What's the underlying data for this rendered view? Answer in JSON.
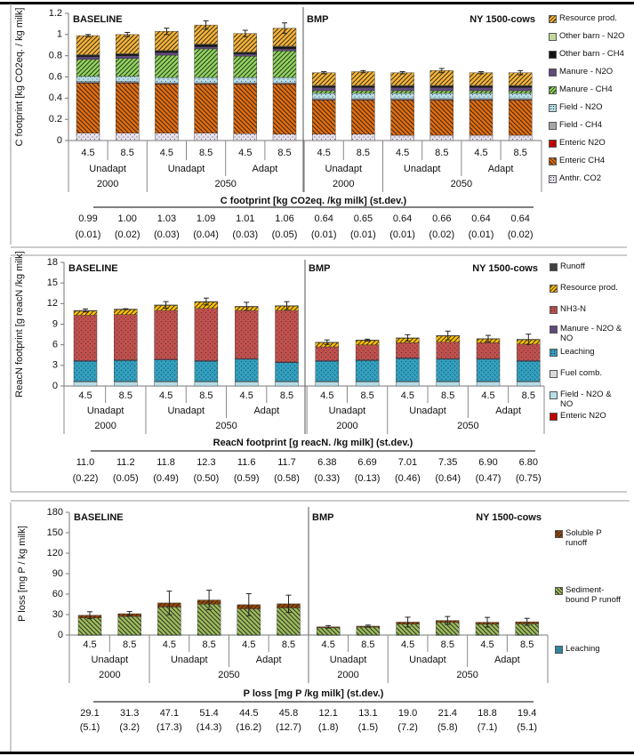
{
  "chart_data": [
    {
      "type": "bar",
      "stacked": true,
      "label_left": "BASELINE",
      "label_mid": "BMP",
      "label_right": "NY 1500-cows",
      "ylabel": "C footprint [kg CO2eq. / kg milk]",
      "ylim": [
        0,
        1.2
      ],
      "yticks": [
        "0",
        "0.2",
        "0.4",
        "0.6",
        "0.8",
        "1",
        "1.2"
      ],
      "rcp": [
        "4.5",
        "8.5",
        "4.5",
        "8.5",
        "4.5",
        "8.5",
        "4.5",
        "8.5",
        "4.5",
        "8.5",
        "4.5",
        "8.5"
      ],
      "scenarios": [
        "Unadapt",
        "Unadapt",
        "Adapt",
        "Unadapt",
        "Unadapt",
        "Adapt"
      ],
      "years": [
        "2000",
        "2050",
        "2000",
        "2050"
      ],
      "table_title": "C footprint [kg CO2eq. /kg milk]  (st.dev.)",
      "totals": [
        "0.99",
        "1.00",
        "1.03",
        "1.09",
        "1.01",
        "1.06",
        "0.64",
        "0.65",
        "0.64",
        "0.66",
        "0.64",
        "0.64"
      ],
      "stdev": [
        "(0.01)",
        "(0.02)",
        "(0.03)",
        "(0.04)",
        "(0.03)",
        "(0.05)",
        "(0.01)",
        "(0.01)",
        "(0.01)",
        "(0.02)",
        "(0.01)",
        "(0.02)"
      ],
      "series": [
        {
          "name": "Anthr. CO2",
          "color": "#e6e0ec",
          "pattern": "dots",
          "values": [
            0.07,
            0.07,
            0.07,
            0.07,
            0.065,
            0.06,
            0.06,
            0.06,
            0.05,
            0.05,
            0.05,
            0.05
          ]
        },
        {
          "name": "Enteric CH4",
          "color": "#e46c0a",
          "pattern": "hatch-down",
          "values": [
            0.47,
            0.47,
            0.46,
            0.46,
            0.465,
            0.47,
            0.32,
            0.32,
            0.33,
            0.33,
            0.33,
            0.33
          ]
        },
        {
          "name": "Enteric N2O",
          "color": "#c00000",
          "pattern": "solid",
          "values": [
            0.005,
            0.005,
            0.005,
            0.005,
            0.005,
            0.005,
            0.005,
            0.005,
            0.005,
            0.005,
            0.005,
            0.005
          ]
        },
        {
          "name": "Field - CH4",
          "color": "#a6a6a6",
          "pattern": "solid",
          "values": [
            0.01,
            0.01,
            0.01,
            0.01,
            0.01,
            0.01,
            0.01,
            0.01,
            0.01,
            0.01,
            0.01,
            0.01
          ]
        },
        {
          "name": "Field - N2O",
          "color": "#b7dee8",
          "pattern": "dots",
          "values": [
            0.05,
            0.05,
            0.05,
            0.05,
            0.05,
            0.05,
            0.05,
            0.05,
            0.05,
            0.05,
            0.05,
            0.05
          ]
        },
        {
          "name": "Manure - CH4",
          "color": "#8fd45b",
          "pattern": "hatch-up",
          "values": [
            0.16,
            0.17,
            0.21,
            0.27,
            0.2,
            0.25,
            0.025,
            0.025,
            0.025,
            0.025,
            0.025,
            0.025
          ]
        },
        {
          "name": "Manure - N2O",
          "color": "#604a7b",
          "pattern": "solid",
          "values": [
            0.025,
            0.025,
            0.025,
            0.02,
            0.02,
            0.02,
            0.03,
            0.03,
            0.03,
            0.03,
            0.03,
            0.03
          ]
        },
        {
          "name": "Other barn - CH4",
          "color": "#111111",
          "pattern": "solid",
          "values": [
            0.015,
            0.015,
            0.015,
            0.02,
            0.015,
            0.02,
            0.015,
            0.015,
            0.015,
            0.015,
            0.015,
            0.015
          ]
        },
        {
          "name": "Other barn - N2O",
          "color": "#c4d79b",
          "pattern": "solid",
          "values": [
            0.005,
            0.005,
            0.005,
            0.005,
            0.005,
            0.005,
            0.005,
            0.005,
            0.005,
            0.005,
            0.005,
            0.005
          ]
        },
        {
          "name": "Resource prod.",
          "color": "#f5b335",
          "pattern": "hatch-up",
          "values": [
            0.18,
            0.18,
            0.18,
            0.18,
            0.175,
            0.17,
            0.12,
            0.13,
            0.12,
            0.14,
            0.12,
            0.12
          ]
        }
      ]
    },
    {
      "type": "bar",
      "stacked": true,
      "label_left": "BASELINE",
      "label_mid": "BMP",
      "label_right": "NY 1500-cows",
      "ylabel": "ReacN footprint [g reacN /kg milk]",
      "ylim": [
        0,
        18
      ],
      "yticks": [
        "0",
        "3",
        "6",
        "9",
        "12",
        "15",
        "18"
      ],
      "rcp": [
        "4.5",
        "8.5",
        "4.5",
        "8.5",
        "4.5",
        "8.5",
        "4.5",
        "8.5",
        "4.5",
        "8.5",
        "4.5",
        "8.5"
      ],
      "scenarios": [
        "Unadapt",
        "Unadapt",
        "Adapt",
        "Unadapt",
        "Unadapt",
        "Adapt"
      ],
      "years": [
        "2000",
        "2050",
        "2000",
        "2050"
      ],
      "table_title": "ReacN footprint [g reacN. /kg milk]  (st.dev.)",
      "totals": [
        "11.0",
        "11.2",
        "11.8",
        "12.3",
        "11.6",
        "11.7",
        "6.38",
        "6.69",
        "7.01",
        "7.35",
        "6.90",
        "6.80"
      ],
      "stdev": [
        "(0.22)",
        "(0.05)",
        "(0.49)",
        "(0.50)",
        "(0.59)",
        "(0.58)",
        "(0.33)",
        "(0.13)",
        "(0.46)",
        "(0.64)",
        "(0.47)",
        "(0.75)"
      ],
      "series": [
        {
          "name": "Enteric N2O",
          "color": "#c00000",
          "pattern": "solid",
          "values": [
            0,
            0,
            0,
            0,
            0,
            0,
            0,
            0,
            0,
            0,
            0,
            0
          ]
        },
        {
          "name": "Field - N2O & NO",
          "color": "#b7dee8",
          "pattern": "solid",
          "values": [
            0.6,
            0.6,
            0.6,
            0.6,
            0.6,
            0.6,
            0.6,
            0.6,
            0.6,
            0.6,
            0.6,
            0.6
          ]
        },
        {
          "name": "Fuel comb.",
          "color": "#d9d9d9",
          "pattern": "solid",
          "values": [
            0.1,
            0.1,
            0.1,
            0.1,
            0.1,
            0.1,
            0.1,
            0.1,
            0.1,
            0.1,
            0.1,
            0.1
          ]
        },
        {
          "name": "Leaching",
          "color": "#31a0c0",
          "pattern": "dots",
          "values": [
            2.9,
            3.0,
            3.1,
            2.9,
            3.2,
            2.7,
            2.9,
            3.0,
            3.3,
            3.2,
            3.2,
            2.9
          ]
        },
        {
          "name": "Manure - N2O & NO",
          "color": "#604a7b",
          "pattern": "solid",
          "values": [
            0.1,
            0.1,
            0.1,
            0.1,
            0.1,
            0.1,
            0.1,
            0.1,
            0.1,
            0.1,
            0.1,
            0.1
          ]
        },
        {
          "name": "NH3-N",
          "color": "#c0504d",
          "pattern": "dots",
          "values": [
            6.6,
            6.6,
            7.1,
            7.6,
            7.0,
            7.5,
            2.0,
            2.2,
            2.2,
            2.4,
            2.3,
            2.4
          ]
        },
        {
          "name": "Resource prod.",
          "color": "#ffc000",
          "pattern": "hatch-up",
          "values": [
            0.65,
            0.75,
            0.75,
            0.95,
            0.55,
            0.65,
            0.63,
            0.64,
            0.66,
            0.9,
            0.55,
            0.65
          ]
        },
        {
          "name": "Runoff",
          "color": "#404040",
          "pattern": "solid",
          "values": [
            0.05,
            0.05,
            0.05,
            0.05,
            0.05,
            0.05,
            0.05,
            0.05,
            0.05,
            0.05,
            0.05,
            0.05
          ]
        }
      ]
    },
    {
      "type": "bar",
      "stacked": true,
      "label_left": "BASELINE",
      "label_mid": "BMP",
      "label_right": "NY 1500-cows",
      "ylabel": "P loss [mg P / kg milk]",
      "ylim": [
        0,
        180
      ],
      "yticks": [
        "0",
        "30",
        "60",
        "90",
        "120",
        "150",
        "180"
      ],
      "rcp": [
        "4.5",
        "8.5",
        "4.5",
        "8.5",
        "4.5",
        "8.5",
        "4.5",
        "8.5",
        "4.5",
        "8.5",
        "4.5",
        "8.5"
      ],
      "scenarios": [
        "Unadapt",
        "Unadapt",
        "Adapt",
        "Unadapt",
        "Unadapt",
        "Adapt"
      ],
      "years": [
        "2000",
        "2050",
        "2000",
        "2050"
      ],
      "table_title": "P loss  [mg P /kg milk]  (st.dev.)",
      "totals": [
        "29.1",
        "31.3",
        "47.1",
        "51.4",
        "44.5",
        "45.8",
        "12.1",
        "13.1",
        "19.0",
        "21.4",
        "18.8",
        "19.4"
      ],
      "stdev": [
        "(5.1)",
        "(3.2)",
        "(17.3)",
        "(14.3)",
        "(16.2)",
        "(12.7)",
        "(1.8)",
        "(1.5)",
        "(7.2)",
        "(5.8)",
        "(7.1)",
        "(5.1)"
      ],
      "series": [
        {
          "name": "Leaching",
          "color": "#31859c",
          "pattern": "solid",
          "values": [
            0.2,
            0.2,
            0.2,
            0.2,
            0.2,
            0.2,
            0.2,
            0.2,
            0.2,
            0.2,
            0.2,
            0.2
          ]
        },
        {
          "name": "Sediment-bound P runoff",
          "color": "#9bbb59",
          "pattern": "hatch-down",
          "values": [
            24.9,
            27.1,
            40.9,
            45.2,
            38.3,
            39.6,
            10.4,
            11.4,
            15.8,
            18.2,
            15.6,
            16.2
          ]
        },
        {
          "name": "Soluble P runoff",
          "color": "#974806",
          "pattern": "hatch-up",
          "values": [
            4,
            4,
            6,
            6,
            6,
            6,
            1.5,
            1.5,
            3,
            3,
            3,
            3
          ]
        }
      ]
    }
  ]
}
